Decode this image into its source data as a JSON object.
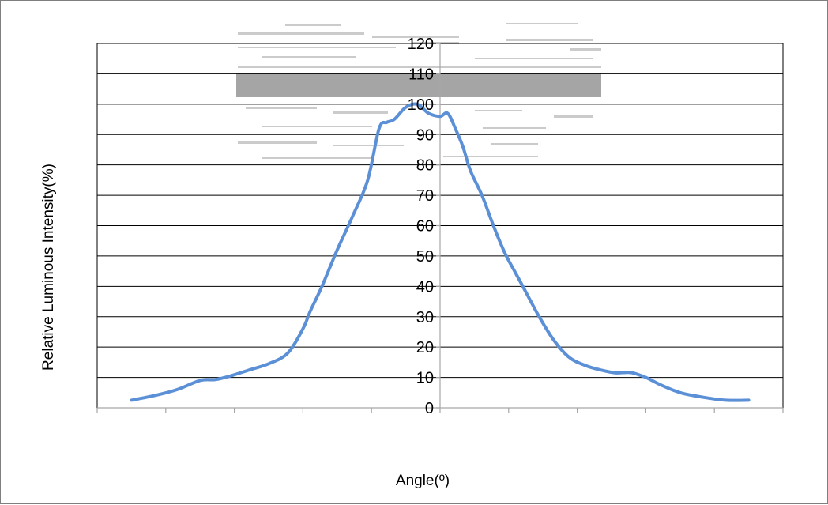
{
  "chart_data": {
    "type": "line",
    "title": "",
    "xlabel": "Angle(º)",
    "ylabel": "Relative Luminous Intensity(%)",
    "xlim": [
      -90,
      90
    ],
    "ylim": [
      0,
      120
    ],
    "y_ticks": [
      0,
      10,
      20,
      30,
      40,
      50,
      60,
      70,
      80,
      90,
      100,
      110,
      120
    ],
    "x_tick_count": 11,
    "grid": "horizontal",
    "legend": "none",
    "series": [
      {
        "x": [
          -81,
          -75,
          -69,
          -63,
          -59,
          -55,
          -50,
          -45,
          -40,
          -36,
          -34,
          -31,
          -27,
          -23,
          -19,
          -16,
          -14,
          -12,
          -9,
          -6,
          -3,
          0,
          2,
          4,
          6,
          8,
          11,
          14,
          17,
          20,
          23,
          26,
          30,
          34,
          38,
          42,
          46,
          50,
          54,
          58,
          63,
          69,
          75,
          81
        ],
        "values": [
          2.5,
          4,
          6,
          9,
          9.3,
          10.5,
          12.5,
          14.5,
          18,
          26,
          32,
          40,
          52,
          63,
          75,
          92,
          94,
          95,
          99,
          100,
          97,
          96,
          97,
          92,
          86,
          78,
          70,
          60,
          51,
          44,
          37,
          30,
          22,
          16.5,
          14,
          12.5,
          11.5,
          11.6,
          10,
          7.5,
          5,
          3.5,
          2.5,
          2.5
        ]
      }
    ],
    "colors": {
      "line": "#5b8fd6",
      "grid": "#000000",
      "axis": "#a6a6a6",
      "watermark": "#a0a0a0"
    }
  }
}
